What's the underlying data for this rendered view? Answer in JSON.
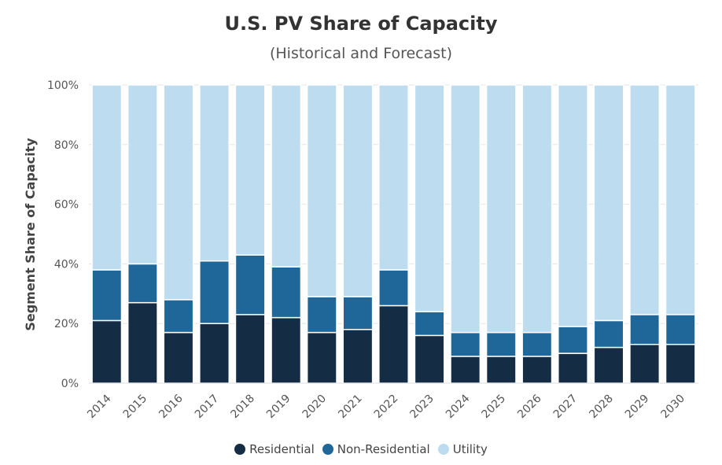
{
  "chart_data": {
    "type": "bar",
    "stacked": true,
    "title": "U.S. PV Share of Capacity",
    "subtitle": "(Historical and Forecast)",
    "xlabel": "",
    "ylabel": "Segment Share of Capacity",
    "ylim": [
      0,
      100
    ],
    "yticks": [
      "0%",
      "20%",
      "40%",
      "60%",
      "80%",
      "100%"
    ],
    "grid": true,
    "legend_position": "bottom",
    "categories": [
      "2014",
      "2015",
      "2016",
      "2017",
      "2018",
      "2019",
      "2020",
      "2021",
      "2022",
      "2023",
      "2024",
      "2025",
      "2026",
      "2027",
      "2028",
      "2029",
      "2030"
    ],
    "series": [
      {
        "name": "Residential",
        "color": "#142d45",
        "values": [
          21,
          27,
          17,
          20,
          23,
          22,
          17,
          18,
          26,
          16,
          9,
          9,
          9,
          10,
          12,
          13,
          13
        ]
      },
      {
        "name": "Non-Residential",
        "color": "#1f6699",
        "values": [
          17,
          13,
          11,
          21,
          20,
          17,
          12,
          11,
          12,
          8,
          8,
          8,
          8,
          9,
          9,
          10,
          10
        ]
      },
      {
        "name": "Utility",
        "color": "#bddcf0",
        "values": [
          62,
          60,
          72,
          59,
          57,
          61,
          71,
          71,
          62,
          76,
          83,
          83,
          83,
          81,
          79,
          77,
          77
        ]
      }
    ]
  }
}
